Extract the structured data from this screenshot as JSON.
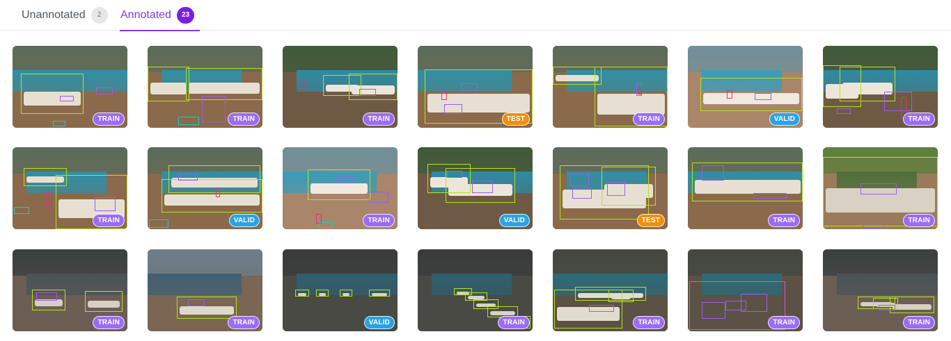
{
  "tabs": {
    "unannotated": {
      "label": "Unannotated",
      "count": "2"
    },
    "annotated": {
      "label": "Annotated",
      "count": "23"
    }
  },
  "split_colors": {
    "TRAIN": "#9b6cf6",
    "VALID": "#2aa3e6",
    "TEST": "#f0900e"
  },
  "bbox_colors": {
    "lounger": "#b6e319",
    "towel": "#9b5cf0",
    "bottle": "#e0337a",
    "sunglasses": "#22c7c7",
    "umbrella": "#ef4cc9"
  },
  "grid": [
    {
      "split": "TRAIN",
      "theme": "day"
    },
    {
      "split": "TRAIN",
      "theme": "day"
    },
    {
      "split": "TRAIN",
      "theme": "garden"
    },
    {
      "split": "TEST",
      "theme": "day"
    },
    {
      "split": "TRAIN",
      "theme": "day"
    },
    {
      "split": "VALID",
      "theme": "deck"
    },
    {
      "split": "TRAIN",
      "theme": "garden"
    },
    {
      "split": "TRAIN",
      "theme": "day"
    },
    {
      "split": "VALID",
      "theme": "day"
    },
    {
      "split": "TRAIN",
      "theme": "deck"
    },
    {
      "split": "VALID",
      "theme": "garden"
    },
    {
      "split": "TEST",
      "theme": "day"
    },
    {
      "split": "TRAIN",
      "theme": "day"
    },
    {
      "split": "TRAIN",
      "theme": "lawn"
    },
    {
      "split": "TRAIN",
      "theme": "dusk"
    },
    {
      "split": "TRAIN",
      "theme": "beach"
    },
    {
      "split": "VALID",
      "theme": "hotel"
    },
    {
      "split": "TRAIN",
      "theme": "hotel"
    },
    {
      "split": "TRAIN",
      "theme": "villa"
    },
    {
      "split": "TRAIN",
      "theme": "villa"
    },
    {
      "split": "TRAIN",
      "theme": "dusk"
    }
  ]
}
